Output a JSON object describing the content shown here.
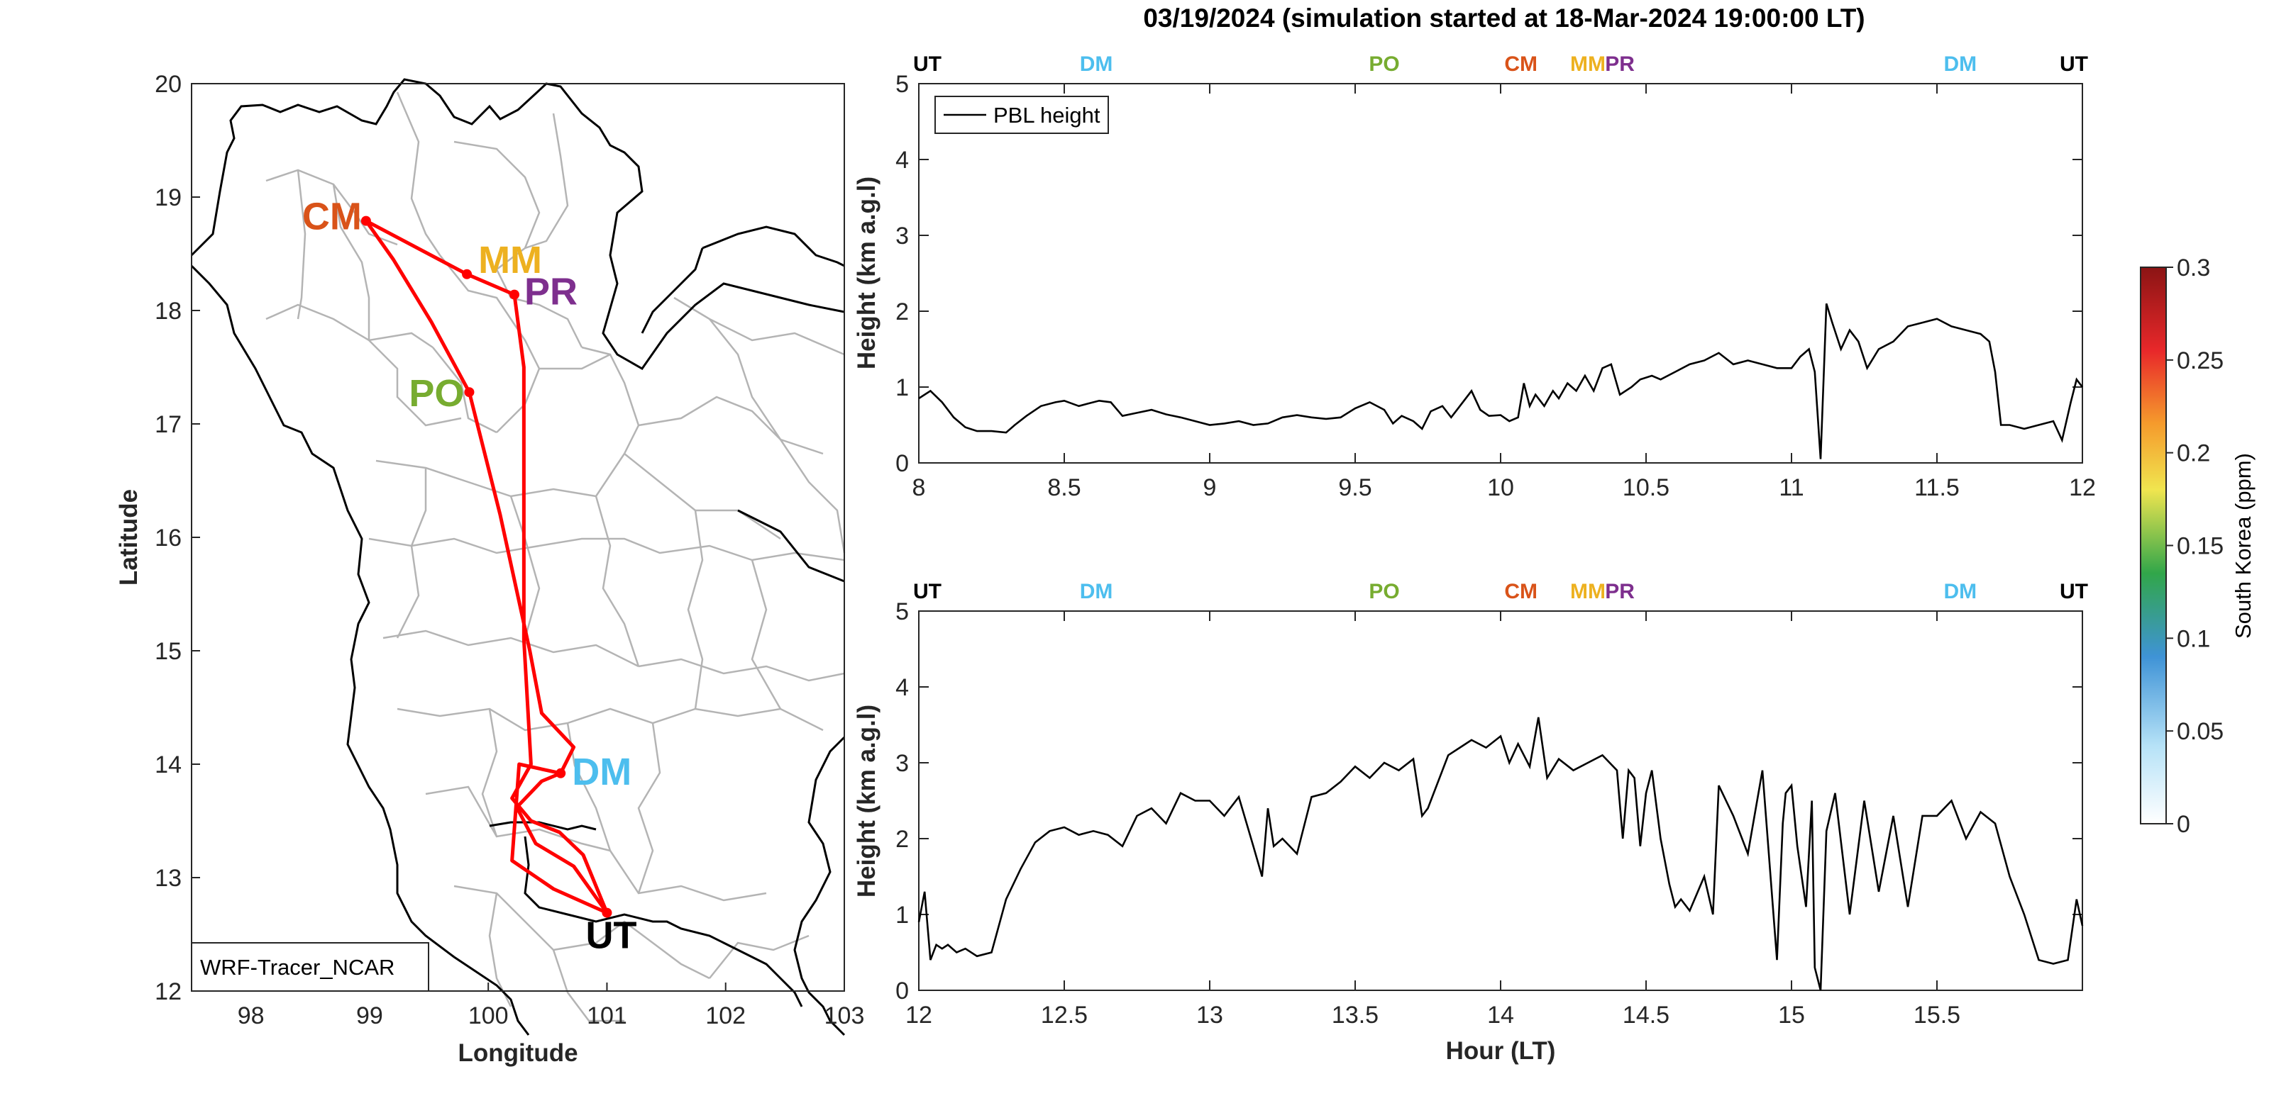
{
  "title": "03/19/2024 (simulation started at 18-Mar-2024 19:00:00 LT)",
  "colors": {
    "UT": "#000000",
    "DM": "#4dbeee",
    "PO": "#77ac30",
    "CM": "#d95319",
    "MM": "#edb120",
    "PR": "#7e2f8e",
    "route": "#ff0000"
  },
  "chart_data": [
    {
      "type": "line",
      "id": "map",
      "xlabel": "Longitude",
      "ylabel": "Latitude",
      "xlim": [
        97.5,
        103
      ],
      "ylim": [
        12,
        20
      ],
      "xticks": [
        98,
        99,
        100,
        101,
        102,
        103
      ],
      "yticks": [
        12,
        13,
        14,
        15,
        16,
        17,
        18,
        19,
        20
      ],
      "box_label": "WRF-Tracer_NCAR",
      "sites": [
        {
          "name": "CM",
          "lon": 98.97,
          "lat": 18.79
        },
        {
          "name": "MM",
          "lon": 99.82,
          "lat": 18.32
        },
        {
          "name": "PR",
          "lon": 100.22,
          "lat": 18.14
        },
        {
          "name": "PO",
          "lon": 99.84,
          "lat": 17.28
        },
        {
          "name": "DM",
          "lon": 100.61,
          "lat": 13.92
        },
        {
          "name": "UT",
          "lon": 101.0,
          "lat": 12.69
        }
      ],
      "route": [
        [
          101.0,
          12.69
        ],
        [
          100.72,
          13.1
        ],
        [
          100.4,
          13.3
        ],
        [
          100.24,
          13.62
        ],
        [
          100.45,
          13.85
        ],
        [
          100.61,
          13.92
        ],
        [
          100.72,
          14.15
        ],
        [
          100.45,
          14.45
        ],
        [
          100.35,
          15.0
        ],
        [
          100.1,
          16.2
        ],
        [
          99.84,
          17.28
        ],
        [
          99.52,
          17.9
        ],
        [
          99.2,
          18.45
        ],
        [
          98.97,
          18.79
        ],
        [
          99.82,
          18.32
        ],
        [
          100.22,
          18.14
        ],
        [
          100.3,
          17.5
        ],
        [
          100.3,
          16.1
        ],
        [
          100.3,
          15.1
        ],
        [
          100.36,
          14.0
        ],
        [
          100.2,
          13.7
        ],
        [
          100.36,
          13.5
        ],
        [
          100.6,
          13.4
        ],
        [
          100.8,
          13.2
        ],
        [
          101.0,
          12.69
        ],
        [
          100.55,
          12.9
        ],
        [
          100.2,
          13.15
        ],
        [
          100.26,
          14.0
        ],
        [
          100.61,
          13.92
        ]
      ]
    },
    {
      "type": "line",
      "id": "pbl1",
      "xlabel": "",
      "ylabel": "Height (km a.g.l)",
      "xlim": [
        8,
        12
      ],
      "ylim": [
        0,
        5
      ],
      "xticks": [
        8,
        8.5,
        9,
        9.5,
        10,
        10.5,
        11,
        11.5,
        12
      ],
      "yticks": [
        0,
        1,
        2,
        3,
        4,
        5
      ],
      "legend": "PBL height",
      "legend_loc": "top-left",
      "top_markers": [
        {
          "name": "UT",
          "x": 8.0
        },
        {
          "name": "DM",
          "x": 8.61
        },
        {
          "name": "PO",
          "x": 9.6
        },
        {
          "name": "CM",
          "x": 10.07
        },
        {
          "name": "MM",
          "x": 10.3
        },
        {
          "name": "PR",
          "x": 10.41
        },
        {
          "name": "DM",
          "x": 11.58
        },
        {
          "name": "UT",
          "x": 12.0
        }
      ],
      "x": [
        8.0,
        8.04,
        8.08,
        8.12,
        8.16,
        8.2,
        8.25,
        8.3,
        8.33,
        8.37,
        8.42,
        8.47,
        8.5,
        8.55,
        8.58,
        8.62,
        8.66,
        8.7,
        8.75,
        8.8,
        8.85,
        8.9,
        8.95,
        9.0,
        9.05,
        9.1,
        9.15,
        9.2,
        9.25,
        9.3,
        9.35,
        9.4,
        9.45,
        9.5,
        9.55,
        9.6,
        9.63,
        9.66,
        9.7,
        9.73,
        9.76,
        9.8,
        9.83,
        9.86,
        9.9,
        9.93,
        9.96,
        10.0,
        10.03,
        10.06,
        10.08,
        10.1,
        10.12,
        10.15,
        10.18,
        10.2,
        10.23,
        10.26,
        10.29,
        10.32,
        10.35,
        10.38,
        10.41,
        10.45,
        10.48,
        10.52,
        10.55,
        10.6,
        10.65,
        10.7,
        10.75,
        10.8,
        10.85,
        10.9,
        10.95,
        11.0,
        11.03,
        11.06,
        11.08,
        11.1,
        11.12,
        11.14,
        11.17,
        11.2,
        11.23,
        11.26,
        11.3,
        11.35,
        11.4,
        11.45,
        11.5,
        11.55,
        11.6,
        11.65,
        11.68,
        11.7,
        11.72,
        11.75,
        11.8,
        11.85,
        11.9,
        11.93,
        11.96,
        11.98,
        12.0
      ],
      "y": [
        0.85,
        0.95,
        0.8,
        0.6,
        0.47,
        0.42,
        0.42,
        0.4,
        0.5,
        0.62,
        0.75,
        0.8,
        0.82,
        0.75,
        0.78,
        0.82,
        0.8,
        0.62,
        0.66,
        0.7,
        0.64,
        0.6,
        0.55,
        0.5,
        0.52,
        0.55,
        0.5,
        0.52,
        0.6,
        0.63,
        0.6,
        0.58,
        0.6,
        0.72,
        0.8,
        0.7,
        0.52,
        0.62,
        0.55,
        0.45,
        0.68,
        0.75,
        0.6,
        0.75,
        0.95,
        0.7,
        0.62,
        0.63,
        0.55,
        0.6,
        1.05,
        0.75,
        0.9,
        0.75,
        0.95,
        0.85,
        1.05,
        0.95,
        1.15,
        0.95,
        1.25,
        1.3,
        0.9,
        1.0,
        1.1,
        1.15,
        1.1,
        1.2,
        1.3,
        1.35,
        1.45,
        1.3,
        1.35,
        1.3,
        1.25,
        1.25,
        1.4,
        1.5,
        1.2,
        0.05,
        2.1,
        1.85,
        1.5,
        1.75,
        1.6,
        1.25,
        1.5,
        1.6,
        1.8,
        1.85,
        1.9,
        1.8,
        1.75,
        1.7,
        1.6,
        1.2,
        0.5,
        0.5,
        0.45,
        0.5,
        0.55,
        0.3,
        0.8,
        1.1,
        1.0
      ]
    },
    {
      "type": "line",
      "id": "pbl2",
      "xlabel": "Hour (LT)",
      "ylabel": "Height (km a.g.l)",
      "xlim": [
        12,
        16
      ],
      "ylim": [
        0,
        5
      ],
      "xticks": [
        12,
        12.5,
        13,
        13.5,
        14,
        14.5,
        15,
        15.5
      ],
      "yticks": [
        0,
        1,
        2,
        3,
        4,
        5
      ],
      "top_markers": [
        {
          "name": "UT",
          "x": 12.0
        },
        {
          "name": "DM",
          "x": 12.61
        },
        {
          "name": "PO",
          "x": 13.6
        },
        {
          "name": "CM",
          "x": 14.07
        },
        {
          "name": "MM",
          "x": 14.3
        },
        {
          "name": "PR",
          "x": 14.41
        },
        {
          "name": "DM",
          "x": 15.58
        },
        {
          "name": "UT",
          "x": 16.0
        }
      ],
      "x": [
        12.0,
        12.02,
        12.04,
        12.06,
        12.08,
        12.1,
        12.13,
        12.16,
        12.2,
        12.25,
        12.3,
        12.35,
        12.4,
        12.45,
        12.5,
        12.55,
        12.6,
        12.65,
        12.7,
        12.75,
        12.8,
        12.85,
        12.9,
        12.95,
        13.0,
        13.05,
        13.1,
        13.15,
        13.18,
        13.2,
        13.22,
        13.25,
        13.3,
        13.35,
        13.4,
        13.45,
        13.5,
        13.55,
        13.6,
        13.65,
        13.7,
        13.73,
        13.75,
        13.78,
        13.82,
        13.86,
        13.9,
        13.95,
        14.0,
        14.03,
        14.06,
        14.1,
        14.13,
        14.16,
        14.2,
        14.25,
        14.3,
        14.35,
        14.4,
        14.42,
        14.44,
        14.46,
        14.48,
        14.5,
        14.52,
        14.55,
        14.58,
        14.6,
        14.62,
        14.65,
        14.7,
        14.73,
        14.75,
        14.8,
        14.85,
        14.9,
        14.95,
        14.97,
        14.98,
        15.0,
        15.02,
        15.05,
        15.07,
        15.08,
        15.1,
        15.12,
        15.15,
        15.2,
        15.25,
        15.3,
        15.35,
        15.4,
        15.45,
        15.5,
        15.55,
        15.6,
        15.65,
        15.7,
        15.75,
        15.8,
        15.85,
        15.9,
        15.95,
        15.98,
        16.0
      ],
      "y": [
        0.9,
        1.3,
        0.4,
        0.6,
        0.55,
        0.6,
        0.5,
        0.55,
        0.45,
        0.5,
        1.2,
        1.6,
        1.95,
        2.1,
        2.15,
        2.05,
        2.1,
        2.05,
        1.9,
        2.3,
        2.4,
        2.2,
        2.6,
        2.5,
        2.5,
        2.3,
        2.55,
        1.9,
        1.5,
        2.4,
        1.9,
        2.0,
        1.8,
        2.55,
        2.6,
        2.75,
        2.95,
        2.8,
        3.0,
        2.9,
        3.05,
        2.3,
        2.4,
        2.7,
        3.1,
        3.2,
        3.3,
        3.2,
        3.35,
        3.0,
        3.25,
        2.95,
        3.6,
        2.8,
        3.05,
        2.9,
        3.0,
        3.1,
        2.9,
        2.0,
        2.9,
        2.8,
        1.9,
        2.6,
        2.9,
        2.0,
        1.4,
        1.1,
        1.2,
        1.05,
        1.5,
        1.0,
        2.7,
        2.3,
        1.8,
        2.9,
        0.4,
        2.2,
        2.6,
        2.7,
        1.9,
        1.1,
        2.5,
        0.3,
        0.0,
        2.1,
        2.6,
        1.0,
        2.5,
        1.3,
        2.3,
        1.1,
        2.3,
        2.3,
        2.5,
        2.0,
        2.35,
        2.2,
        1.5,
        1.0,
        0.4,
        0.35,
        0.4,
        1.2,
        0.85
      ]
    },
    {
      "type": "heatmap",
      "id": "colorbar",
      "label": "South Korea (ppm)",
      "clim": [
        0,
        0.3
      ],
      "ticks": [
        0,
        0.05,
        0.1,
        0.15,
        0.2,
        0.25,
        0.3
      ]
    }
  ]
}
